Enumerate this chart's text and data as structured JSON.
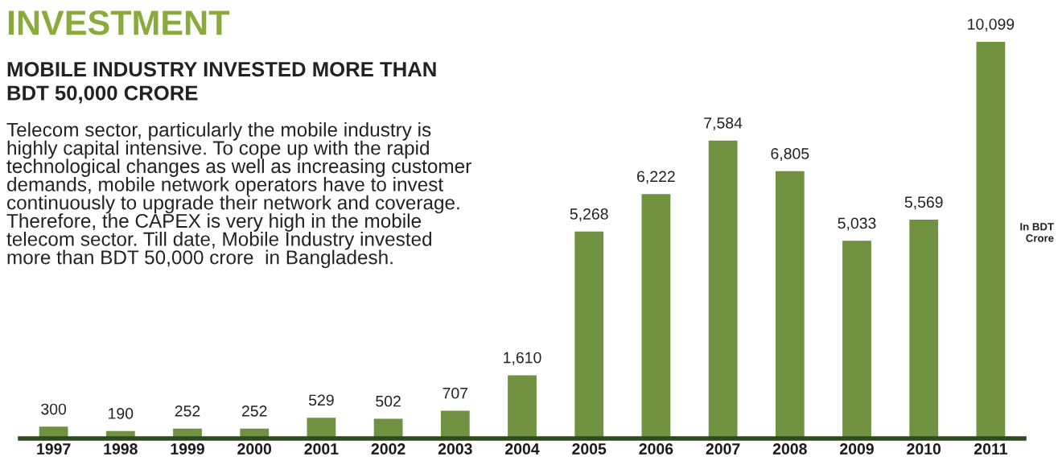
{
  "chart_data": {
    "type": "bar",
    "title": "INVESTMENT",
    "subtitle": "MOBILE INDUSTRY INVESTED MORE THAN\nBDT 50,000 CRORE",
    "categories": [
      "1997",
      "1998",
      "1999",
      "2000",
      "2001",
      "2002",
      "2003",
      "2004",
      "2005",
      "2006",
      "2007",
      "2008",
      "2009",
      "2010",
      "2011"
    ],
    "values": [
      300,
      190,
      252,
      252,
      529,
      502,
      707,
      1610,
      5268,
      6222,
      7584,
      6805,
      5033,
      5569,
      10099
    ],
    "value_labels": [
      "300",
      "190",
      "252",
      "252",
      "529",
      "502",
      "707",
      "1,610",
      "5,268",
      "6,222",
      "7,584",
      "6,805",
      "5,033",
      "5,569",
      "10,099"
    ],
    "color": "#6f9140",
    "grid": false,
    "legend": false,
    "annotations": [
      "Telecom sector, particularly the mobile industry is\nhighly capital intensive. To cope up with the rapid\ntechnological changes as well as increasing customer\ndemands, mobile network operators have to invest\ncontinuously to upgrade their network and coverage.\nTherefore, the CAPEX is very high in the mobile\ntelecom sector. Till date, Mobile Industry invested\nmore than BDT 50,000 crore  in Bangladesh.",
      "In BDT\nCrore"
    ]
  }
}
